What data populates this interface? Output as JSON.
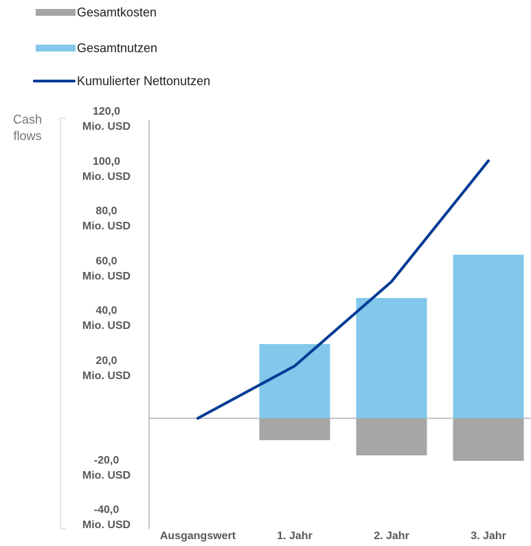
{
  "chart_data": {
    "type": "bar-line",
    "y_axis_label": "Cash\nflows",
    "categories": [
      "Ausgangswert",
      "1. Jahr",
      "2. Jahr",
      "3. Jahr"
    ],
    "series": [
      {
        "name": "Gesamtkosten",
        "type": "bar",
        "color": "#a6a6a6",
        "values": [
          null,
          -8.8,
          -14.9,
          -17.1
        ]
      },
      {
        "name": "Gesamtnutzen",
        "type": "bar",
        "color": "#82c8ea",
        "values": [
          null,
          29.8,
          48.3,
          65.7
        ]
      },
      {
        "name": "Kumulierter Nettonutzen",
        "type": "line",
        "color": "#003b95",
        "values": [
          0,
          21.0,
          54.9,
          103.4
        ]
      }
    ],
    "ylim": [
      -40,
      120
    ],
    "yticks": [
      {
        "value": -40,
        "label": "-40,0\nMio. USD"
      },
      {
        "value": -20,
        "label": "-20,0\nMio. USD"
      },
      {
        "value": 20,
        "label": "20,0\nMio. USD"
      },
      {
        "value": 40,
        "label": "40,0\nMio. USD"
      },
      {
        "value": 60,
        "label": "60,0\nMio. USD"
      },
      {
        "value": 80,
        "label": "80,0\nMio. USD"
      },
      {
        "value": 100,
        "label": "100,0\nMio. USD"
      },
      {
        "value": 120,
        "label": "120,0\nMio. USD"
      }
    ],
    "legend": "top-left"
  }
}
